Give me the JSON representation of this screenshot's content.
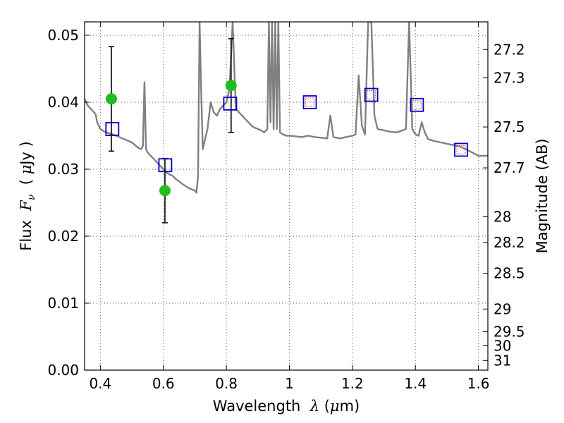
{
  "chart_data": {
    "type": "scatter",
    "xlabel_parts": [
      "Wavelength  ",
      "λ",
      " (",
      "μ",
      "m)"
    ],
    "ylabel_parts": [
      "Flux  ",
      "F",
      "ν",
      "  ( ",
      "μ",
      "Jy )"
    ],
    "y2label": "Magnitude (AB)",
    "xlim": [
      0.35,
      1.63
    ],
    "ylim": [
      0.0,
      0.052
    ],
    "grid": true,
    "x_ticks": [
      0.4,
      0.6,
      0.8,
      1.0,
      1.2,
      1.4,
      1.6
    ],
    "x_tick_labels": [
      "0.4",
      "0.6",
      "0.8",
      "1",
      "1.2",
      "1.4",
      "1.6"
    ],
    "y_ticks": [
      0.0,
      0.01,
      0.02,
      0.03,
      0.04,
      0.05
    ],
    "y_tick_labels": [
      "0.00",
      "0.01",
      "0.02",
      "0.03",
      "0.04",
      "0.05"
    ],
    "y2_ticks": [
      {
        "mag": 27.2,
        "label": "27.2"
      },
      {
        "mag": 27.3,
        "label": "27.3"
      },
      {
        "mag": 27.5,
        "label": "27.5"
      },
      {
        "mag": 27.7,
        "label": "27.7"
      },
      {
        "mag": 28.0,
        "label": "28"
      },
      {
        "mag": 28.2,
        "label": "28.2"
      },
      {
        "mag": 28.5,
        "label": "28.5"
      },
      {
        "mag": 29.0,
        "label": "29"
      },
      {
        "mag": 29.5,
        "label": "29.5"
      },
      {
        "mag": 30.0,
        "label": "30"
      },
      {
        "mag": 31.0,
        "label": "31"
      }
    ],
    "colors": {
      "spectrum": "#808080",
      "observed": "#22bb22",
      "model_box": "#0000cc",
      "model_inner": "#ff3333",
      "errorbar": "#000000",
      "grid": "#555555"
    },
    "series": [
      {
        "kind": "spectrum",
        "x": [
          0.35,
          0.36,
          0.37,
          0.38,
          0.385,
          0.39,
          0.4,
          0.41,
          0.42,
          0.43,
          0.44,
          0.45,
          0.46,
          0.47,
          0.48,
          0.49,
          0.5,
          0.51,
          0.52,
          0.53,
          0.535,
          0.54,
          0.545,
          0.55,
          0.56,
          0.57,
          0.58,
          0.59,
          0.6,
          0.61,
          0.62,
          0.63,
          0.64,
          0.65,
          0.66,
          0.67,
          0.68,
          0.69,
          0.7,
          0.705,
          0.71,
          0.715,
          0.72,
          0.725,
          0.73,
          0.74,
          0.75,
          0.76,
          0.77,
          0.78,
          0.79,
          0.8,
          0.81,
          0.82,
          0.83,
          0.84,
          0.85,
          0.86,
          0.87,
          0.88,
          0.89,
          0.9,
          0.91,
          0.92,
          0.93,
          0.935,
          0.94,
          0.945,
          0.95,
          0.955,
          0.96,
          0.965,
          0.97,
          0.98,
          0.99,
          1.0,
          1.02,
          1.04,
          1.06,
          1.08,
          1.1,
          1.12,
          1.13,
          1.14,
          1.16,
          1.18,
          1.2,
          1.21,
          1.22,
          1.23,
          1.24,
          1.25,
          1.26,
          1.27,
          1.28,
          1.3,
          1.32,
          1.34,
          1.36,
          1.37,
          1.38,
          1.39,
          1.4,
          1.41,
          1.42,
          1.43,
          1.44,
          1.46,
          1.48,
          1.5,
          1.52,
          1.54,
          1.56,
          1.58,
          1.6,
          1.63
        ],
        "y": [
          0.0405,
          0.0395,
          0.039,
          0.0385,
          0.0382,
          0.037,
          0.036,
          0.0357,
          0.0355,
          0.0353,
          0.0352,
          0.035,
          0.0348,
          0.0346,
          0.0344,
          0.0342,
          0.034,
          0.0336,
          0.0332,
          0.033,
          0.0335,
          0.043,
          0.033,
          0.0325,
          0.032,
          0.0315,
          0.031,
          0.0305,
          0.03,
          0.0295,
          0.0292,
          0.029,
          0.0285,
          0.0282,
          0.0278,
          0.0275,
          0.0272,
          0.027,
          0.0268,
          0.0265,
          0.029,
          0.052,
          0.042,
          0.033,
          0.034,
          0.036,
          0.04,
          0.0385,
          0.038,
          0.039,
          0.0395,
          0.04,
          0.042,
          0.052,
          0.039,
          0.0385,
          0.038,
          0.0375,
          0.037,
          0.0365,
          0.0362,
          0.036,
          0.0358,
          0.0355,
          0.036,
          0.052,
          0.037,
          0.052,
          0.036,
          0.052,
          0.036,
          0.052,
          0.0355,
          0.0352,
          0.035,
          0.035,
          0.0349,
          0.0348,
          0.035,
          0.0348,
          0.0347,
          0.0346,
          0.038,
          0.0348,
          0.0346,
          0.0348,
          0.035,
          0.0352,
          0.044,
          0.0365,
          0.0352,
          0.052,
          0.052,
          0.038,
          0.036,
          0.0358,
          0.0356,
          0.0355,
          0.0358,
          0.036,
          0.052,
          0.036,
          0.0352,
          0.035,
          0.037,
          0.0355,
          0.0345,
          0.0342,
          0.034,
          0.0338,
          0.0336,
          0.0334,
          0.033,
          0.0325,
          0.032,
          0.032
        ]
      },
      {
        "kind": "observed",
        "name": "",
        "x": [
          0.435,
          0.605,
          0.815
        ],
        "y": [
          0.0405,
          0.0268,
          0.0425
        ],
        "yerr": [
          0.0078,
          0.0048,
          0.007
        ]
      },
      {
        "kind": "model",
        "name": "",
        "x": [
          0.438,
          0.606,
          0.812,
          1.065,
          1.26,
          1.405,
          1.545
        ],
        "y": [
          0.036,
          0.0306,
          0.0398,
          0.04,
          0.0411,
          0.0396,
          0.0329
        ],
        "inner": [
          false,
          false,
          false,
          true,
          true,
          true,
          true
        ]
      }
    ]
  }
}
